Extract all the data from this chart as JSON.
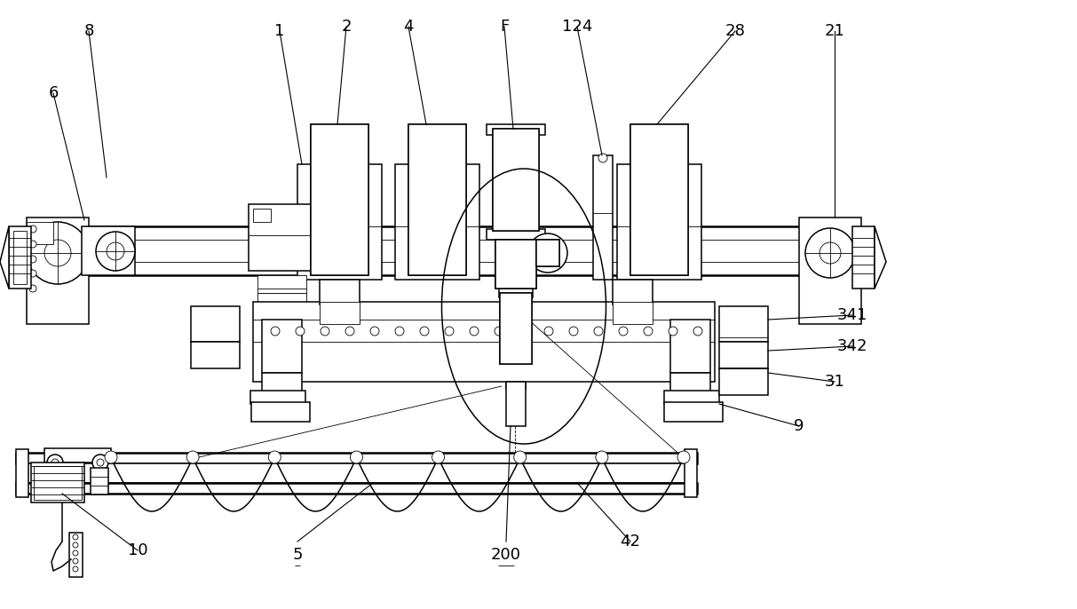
{
  "bg_color": "#ffffff",
  "line_color": "#000000",
  "figsize": [
    12.13,
    6.86
  ],
  "dpi": 100,
  "ann_fs": 13,
  "ann_lw": 0.8,
  "lw_main": 1.1,
  "lw_thick": 1.8,
  "lw_thin": 0.6
}
